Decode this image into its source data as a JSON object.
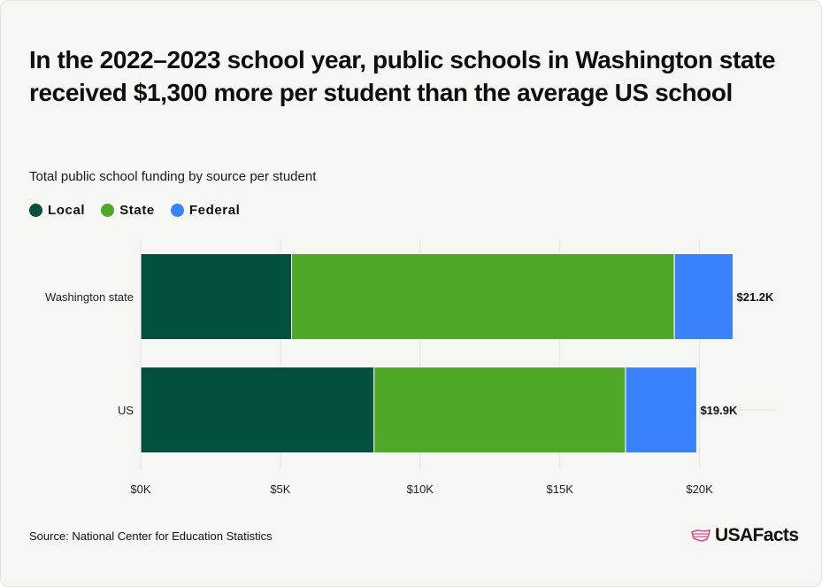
{
  "title": "In the 2022–2023 school year, public schools in Washington state received $1,300 more per student than the average US school",
  "subtitle": "Total public school funding by source per student",
  "legend": [
    {
      "label": "Local",
      "color": "#02513f"
    },
    {
      "label": "State",
      "color": "#4ea928"
    },
    {
      "label": "Federal",
      "color": "#3a82fb"
    }
  ],
  "source": "Source: National Center for Education Statistics",
  "brand": "USAFacts",
  "chart_data": {
    "type": "bar",
    "orientation": "horizontal",
    "stacked": true,
    "categories": [
      "Washington state",
      "US"
    ],
    "series": [
      {
        "name": "Local",
        "color": "#02513f",
        "values": [
          5400,
          8350
        ]
      },
      {
        "name": "State",
        "color": "#4ea928",
        "values": [
          13700,
          9000
        ]
      },
      {
        "name": "Federal",
        "color": "#3a82fb",
        "values": [
          2100,
          2550
        ]
      }
    ],
    "totals": [
      21200,
      19900
    ],
    "total_labels": [
      "$21.2K",
      "$19.9K"
    ],
    "xlim": [
      0,
      21200
    ],
    "xticks": [
      0,
      5000,
      10000,
      15000,
      20000
    ],
    "xtick_labels": [
      "$0K",
      "$5K",
      "$10K",
      "$15K",
      "$20K"
    ],
    "title": "In the 2022–2023 school year, public schools in Washington state received $1,300 more per student than the average US school",
    "xlabel": "",
    "ylabel": "",
    "grid": true
  }
}
